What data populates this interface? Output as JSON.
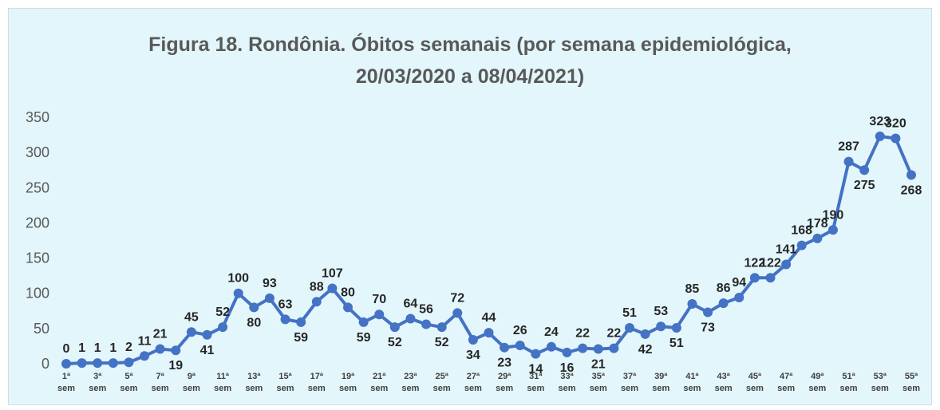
{
  "chart_data": {
    "type": "line",
    "title": [
      "Figura 18.  Rondônia. Óbitos semanais (por semana epidemiológica,",
      "20/03/2020 a 08/04/2021)"
    ],
    "categories": [
      "1ª sem",
      null,
      "3ª sem",
      null,
      "5ª sem",
      null,
      "7ª sem",
      null,
      "9ª sem",
      null,
      "11ª sem",
      null,
      "13ª sem",
      null,
      "15ª sem",
      null,
      "17ª sem",
      null,
      "19ª sem",
      null,
      "21ª sem",
      null,
      "23ª sem",
      null,
      "25ª sem",
      null,
      "27ª sem",
      null,
      "29ª sem",
      null,
      "31ª sem",
      null,
      "33ª sem",
      null,
      "35ª sem",
      null,
      "37ª sem",
      null,
      "39ª sem",
      null,
      "41ª sem",
      null,
      "43ª sem",
      null,
      "45ª sem",
      null,
      "47ª sem",
      null,
      "49ª sem",
      null,
      "51ª sem",
      null,
      "53ª sem",
      null,
      "55ª sem"
    ],
    "series": [
      {
        "name": "Óbitos semanais",
        "color": "#4472c4",
        "values": [
          0,
          1,
          1,
          1,
          2,
          11,
          21,
          19,
          45,
          41,
          52,
          100,
          80,
          93,
          63,
          59,
          88,
          107,
          80,
          59,
          70,
          52,
          64,
          56,
          52,
          72,
          34,
          44,
          23,
          26,
          14,
          24,
          16,
          22,
          21,
          22,
          51,
          42,
          53,
          51,
          85,
          73,
          86,
          94,
          122,
          122,
          141,
          168,
          178,
          190,
          287,
          275,
          323,
          320,
          268
        ]
      }
    ],
    "ylim": [
      0,
      350
    ],
    "yticks": [
      0,
      50,
      100,
      150,
      200,
      250,
      300,
      350
    ],
    "grid": false
  }
}
